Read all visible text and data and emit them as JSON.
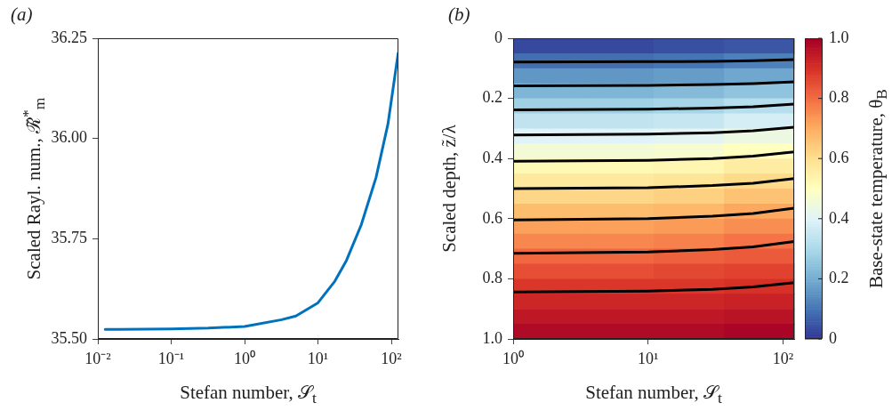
{
  "chart_data": [
    {
      "type": "line",
      "annotations": [
        "(a)"
      ],
      "xlabel": "Stefan number, 𝒮$_{t}$",
      "ylabel": "Scaled Rayl. num., ℛ̃$^{*}$$_{m}$",
      "log": "x",
      "xlim": [
        0.01,
        125
      ],
      "xticks": [
        {
          "value": 0.01,
          "label": "10⁻²"
        },
        {
          "value": 0.1,
          "label": "10⁻¹"
        },
        {
          "value": 1,
          "label": "10⁰"
        },
        {
          "value": 10,
          "label": "10¹"
        },
        {
          "value": 100,
          "label": "10²"
        }
      ],
      "ylim": [
        35.5,
        36.25
      ],
      "yticks": [
        {
          "value": 35.5,
          "label": "35.50"
        },
        {
          "value": 35.75,
          "label": "35.75"
        },
        {
          "value": 36,
          "label": "36.00"
        },
        {
          "value": 36.25,
          "label": "36.25"
        }
      ],
      "series": [
        {
          "color": "#0072bd",
          "x": [
            0.0126,
            0.019,
            0.1,
            0.32,
            1,
            3.2,
            5,
            10,
            17,
            24.5,
            39,
            62,
            90,
            124
          ],
          "values": [
            35.524,
            35.524,
            35.525,
            35.527,
            35.531,
            35.548,
            35.557,
            35.59,
            35.644,
            35.696,
            35.785,
            35.903,
            36.036,
            36.213
          ]
        }
      ]
    },
    {
      "type": "heatmap",
      "clabel": "Base-state temperature, θ$_{B}$",
      "tick_labels": false,
      "clim": [
        0,
        1
      ],
      "cticks": [
        0,
        {
          "value": 0.2,
          "label": "0.2"
        },
        {
          "value": 0.4,
          "label": "0.4"
        },
        {
          "value": 0.6,
          "label": "0.6"
        },
        {
          "value": 0.8,
          "label": "0.8"
        },
        {
          "value": 1,
          "label": "1.0"
        }
      ],
      "categories": [
        null,
        null,
        null,
        null
      ],
      "y_categories": [
        null,
        null,
        null,
        null,
        null,
        null,
        null,
        null,
        null,
        null,
        null,
        null,
        null,
        null,
        null,
        null,
        null,
        null,
        null,
        null
      ],
      "cells": [
        [
          0.03,
          0.03,
          0.04,
          0.05
        ],
        [
          0.09,
          0.09,
          0.1,
          0.12
        ],
        [
          0.16,
          0.16,
          0.17,
          0.19
        ],
        [
          0.22,
          0.22,
          0.23,
          0.25
        ],
        [
          0.28,
          0.28,
          0.29,
          0.32
        ],
        [
          0.34,
          0.34,
          0.35,
          0.38
        ],
        [
          0.4,
          0.4,
          0.41,
          0.44
        ],
        [
          0.46,
          0.46,
          0.47,
          0.5
        ],
        [
          0.52,
          0.52,
          0.53,
          0.56
        ],
        [
          0.57,
          0.57,
          0.58,
          0.61
        ],
        [
          0.62,
          0.62,
          0.63,
          0.66
        ],
        [
          0.67,
          0.67,
          0.68,
          0.71
        ],
        [
          0.72,
          0.72,
          0.73,
          0.75
        ],
        [
          0.76,
          0.76,
          0.77,
          0.79
        ],
        [
          0.81,
          0.81,
          0.82,
          0.83
        ],
        [
          0.85,
          0.85,
          0.86,
          0.87
        ],
        [
          0.89,
          0.89,
          0.89,
          0.9
        ],
        [
          0.92,
          0.92,
          0.92,
          0.93
        ],
        [
          0.95,
          0.95,
          0.95,
          0.96
        ],
        [
          0.98,
          0.98,
          0.98,
          0.99
        ]
      ]
    },
    {
      "type": "line",
      "annotations": [
        "(b)"
      ],
      "xlabel": "Stefan number, 𝒮$_{t}$",
      "ylabel": "Scaled depth, z̃/λ",
      "log": "x",
      "xlim": [
        1,
        121
      ],
      "xticks": [
        {
          "value": 1,
          "label": "10⁰"
        },
        {
          "value": 10,
          "label": "10¹"
        },
        {
          "value": 100,
          "label": "10²"
        }
      ],
      "ylim": [
        1,
        0
      ],
      "yticks": [
        0,
        {
          "value": 0.2,
          "label": "0.2"
        },
        {
          "value": 0.4,
          "label": "0.4"
        },
        {
          "value": 0.6,
          "label": "0.6"
        },
        {
          "value": 0.8,
          "label": "0.8"
        },
        {
          "value": 1,
          "label": "1.0"
        }
      ],
      "series": [
        {
          "color": "#000000",
          "x": [
            1,
            10,
            30,
            60,
            121
          ],
          "values": [
            0.079,
            0.078,
            0.077,
            0.075,
            0.071
          ]
        },
        {
          "color": "#000000",
          "x": [
            1,
            10,
            30,
            60,
            121
          ],
          "values": [
            0.158,
            0.157,
            0.154,
            0.151,
            0.145
          ]
        },
        {
          "color": "#000000",
          "x": [
            1,
            10,
            30,
            60,
            121
          ],
          "values": [
            0.238,
            0.236,
            0.232,
            0.228,
            0.219
          ]
        },
        {
          "color": "#000000",
          "x": [
            1,
            10,
            30,
            60,
            121
          ],
          "values": [
            0.322,
            0.319,
            0.314,
            0.308,
            0.296
          ]
        },
        {
          "color": "#000000",
          "x": [
            1,
            10,
            30,
            60,
            121
          ],
          "values": [
            0.409,
            0.406,
            0.4,
            0.392,
            0.378
          ]
        },
        {
          "color": "#000000",
          "x": [
            1,
            10,
            30,
            60,
            121
          ],
          "values": [
            0.5,
            0.497,
            0.49,
            0.482,
            0.467
          ]
        },
        {
          "color": "#000000",
          "x": [
            1,
            10,
            30,
            60,
            121
          ],
          "values": [
            0.604,
            0.6,
            0.592,
            0.583,
            0.565
          ]
        },
        {
          "color": "#000000",
          "x": [
            1,
            10,
            30,
            60,
            121
          ],
          "values": [
            0.715,
            0.711,
            0.703,
            0.694,
            0.676
          ]
        },
        {
          "color": "#000000",
          "x": [
            1,
            10,
            30,
            60,
            121
          ],
          "values": [
            0.844,
            0.841,
            0.835,
            0.827,
            0.813
          ]
        }
      ]
    }
  ]
}
